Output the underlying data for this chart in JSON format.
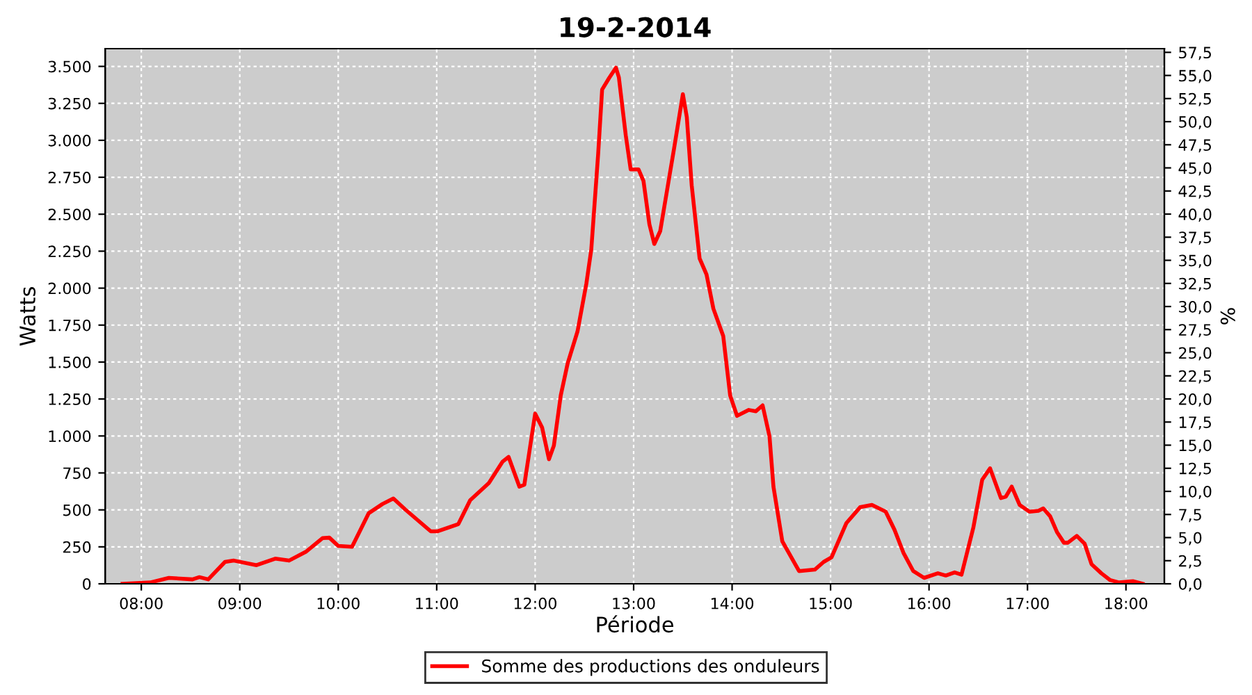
{
  "chart_data": {
    "type": "line",
    "title": "19-2-2014",
    "xlabel": "Période",
    "ylabel": "Watts",
    "y2label": "%",
    "xlim": [
      7.633,
      18.39
    ],
    "ylim": [
      0,
      3620
    ],
    "y2lim": [
      0,
      57.9
    ],
    "xticks": [
      {
        "value": 8,
        "label": "08:00"
      },
      {
        "value": 9,
        "label": "09:00"
      },
      {
        "value": 10,
        "label": "10:00"
      },
      {
        "value": 11,
        "label": "11:00"
      },
      {
        "value": 12,
        "label": "12:00"
      },
      {
        "value": 13,
        "label": "13:00"
      },
      {
        "value": 14,
        "label": "14:00"
      },
      {
        "value": 15,
        "label": "15:00"
      },
      {
        "value": 16,
        "label": "16:00"
      },
      {
        "value": 17,
        "label": "17:00"
      },
      {
        "value": 18,
        "label": "18:00"
      }
    ],
    "yticks": [
      {
        "value": 0,
        "label": "0"
      },
      {
        "value": 250,
        "label": "250"
      },
      {
        "value": 500,
        "label": "500"
      },
      {
        "value": 750,
        "label": "750"
      },
      {
        "value": 1000,
        "label": "1.000"
      },
      {
        "value": 1250,
        "label": "1.250"
      },
      {
        "value": 1500,
        "label": "1.500"
      },
      {
        "value": 1750,
        "label": "1.750"
      },
      {
        "value": 2000,
        "label": "2.000"
      },
      {
        "value": 2250,
        "label": "2.250"
      },
      {
        "value": 2500,
        "label": "2.500"
      },
      {
        "value": 2750,
        "label": "2.750"
      },
      {
        "value": 3000,
        "label": "3.000"
      },
      {
        "value": 3250,
        "label": "3.250"
      },
      {
        "value": 3500,
        "label": "3.500"
      }
    ],
    "y2ticks": [
      {
        "value": 0,
        "label": "0,0"
      },
      {
        "value": 2.5,
        "label": "2,5"
      },
      {
        "value": 5,
        "label": "5,0"
      },
      {
        "value": 7.5,
        "label": "7,5"
      },
      {
        "value": 10,
        "label": "10,0"
      },
      {
        "value": 12.5,
        "label": "12,5"
      },
      {
        "value": 15,
        "label": "15,0"
      },
      {
        "value": 17.5,
        "label": "17,5"
      },
      {
        "value": 20,
        "label": "20,0"
      },
      {
        "value": 22.5,
        "label": "22,5"
      },
      {
        "value": 25,
        "label": "25,0"
      },
      {
        "value": 27.5,
        "label": "27,5"
      },
      {
        "value": 30,
        "label": "30,0"
      },
      {
        "value": 32.5,
        "label": "32,5"
      },
      {
        "value": 35,
        "label": "35,0"
      },
      {
        "value": 37.5,
        "label": "37,5"
      },
      {
        "value": 40,
        "label": "40,0"
      },
      {
        "value": 42.5,
        "label": "42,5"
      },
      {
        "value": 45,
        "label": "45,0"
      },
      {
        "value": 47.5,
        "label": "47,5"
      },
      {
        "value": 50,
        "label": "50,0"
      },
      {
        "value": 52.5,
        "label": "52,5"
      },
      {
        "value": 55,
        "label": "55,0"
      },
      {
        "value": 57.5,
        "label": "57,5"
      }
    ],
    "grid": true,
    "legend": "bottom",
    "marker": "none",
    "line_style": "solid",
    "series": [
      {
        "name": "Somme des productions des onduleurs",
        "color": "#ff0000",
        "x": [
          7.81,
          8.09,
          8.28,
          8.52,
          8.59,
          8.68,
          8.85,
          8.94,
          9.17,
          9.36,
          9.5,
          9.67,
          9.84,
          9.91,
          10.0,
          10.14,
          10.31,
          10.45,
          10.56,
          10.68,
          10.94,
          11.01,
          11.22,
          11.34,
          11.53,
          11.67,
          11.73,
          11.84,
          11.89,
          12.0,
          12.07,
          12.14,
          12.19,
          12.26,
          12.33,
          12.43,
          12.52,
          12.57,
          12.64,
          12.68,
          12.75,
          12.82,
          12.85,
          12.92,
          12.97,
          13.05,
          13.1,
          13.16,
          13.21,
          13.27,
          13.34,
          13.41,
          13.5,
          13.54,
          13.59,
          13.67,
          13.74,
          13.81,
          13.91,
          13.98,
          14.05,
          14.17,
          14.24,
          14.31,
          14.38,
          14.42,
          14.51,
          14.64,
          14.68,
          14.84,
          14.93,
          15.01,
          15.16,
          15.3,
          15.42,
          15.56,
          15.65,
          15.74,
          15.84,
          15.95,
          16.09,
          16.17,
          16.26,
          16.33,
          16.45,
          16.54,
          16.62,
          16.73,
          16.78,
          16.84,
          16.92,
          17.02,
          17.11,
          17.16,
          17.23,
          17.3,
          17.37,
          17.41,
          17.5,
          17.58,
          17.65,
          17.75,
          17.84,
          17.93,
          18.07,
          18.17
        ],
        "values": [
          0,
          9,
          40,
          30,
          45,
          30,
          148,
          157,
          126,
          170,
          157,
          216,
          309,
          312,
          256,
          250,
          478,
          540,
          577,
          503,
          355,
          355,
          404,
          565,
          682,
          827,
          858,
          657,
          670,
          1151,
          1058,
          843,
          935,
          1275,
          1491,
          1707,
          2031,
          2262,
          2910,
          3343,
          3420,
          3491,
          3426,
          3034,
          2803,
          2803,
          2725,
          2432,
          2299,
          2386,
          2664,
          2942,
          3312,
          3157,
          2694,
          2201,
          2093,
          1861,
          1676,
          1275,
          1136,
          1176,
          1167,
          1207,
          997,
          657,
          287,
          133,
          86,
          96,
          148,
          179,
          410,
          518,
          534,
          488,
          364,
          210,
          86,
          40,
          71,
          56,
          77,
          62,
          380,
          704,
          781,
          580,
          590,
          657,
          534,
          488,
          494,
          510,
          457,
          349,
          278,
          278,
          324,
          272,
          133,
          71,
          25,
          9,
          18,
          0
        ]
      }
    ]
  }
}
